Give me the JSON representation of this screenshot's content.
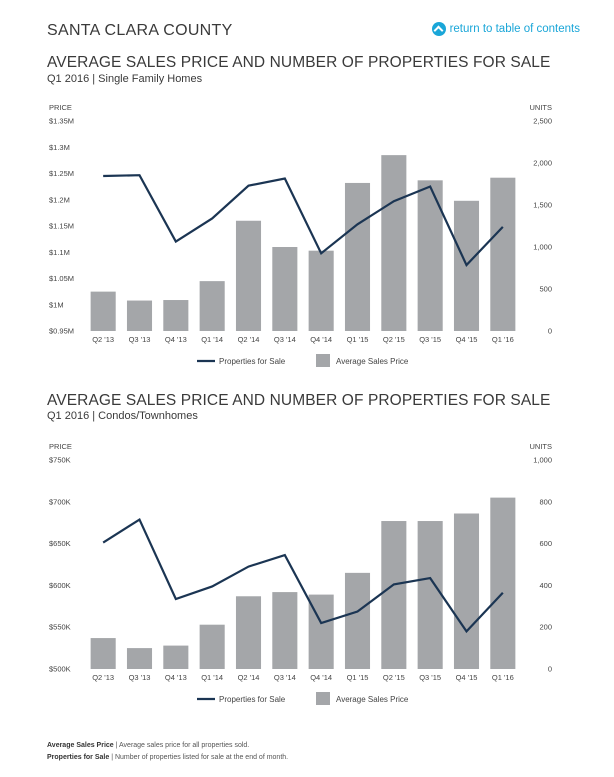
{
  "header": {
    "region": "SANTA CLARA COUNTY",
    "toc_link": "return to table of contents",
    "accent": "#1aa6d8"
  },
  "charts": [
    {
      "title": "AVERAGE SALES PRICE AND NUMBER OF PROPERTIES FOR SALE",
      "subtitle": "Q1 2016 | Single Family Homes"
    },
    {
      "title": "AVERAGE SALES PRICE AND NUMBER OF PROPERTIES FOR SALE",
      "subtitle": "Q1 2016 | Condos/Townhomes"
    }
  ],
  "chart_data": [
    {
      "type": "bar",
      "categories": [
        "Q2 '13",
        "Q3 '13",
        "Q4 '13",
        "Q1 '14",
        "Q2 '14",
        "Q3 '14",
        "Q4 '14",
        "Q1 '15",
        "Q2 '15",
        "Q3 '15",
        "Q4 '15",
        "Q1 '16"
      ],
      "ylabel": "PRICE",
      "y2label": "UNITS",
      "ylim": [
        0.95,
        1.35
      ],
      "y_ticks": [
        "$1.35M",
        "$1.3M",
        "$1.25M",
        "$1.2M",
        "$1.15M",
        "$1.1M",
        "$1.05M",
        "$1M",
        "$0.95M"
      ],
      "y_tick_values": [
        1.35,
        1.3,
        1.25,
        1.2,
        1.15,
        1.1,
        1.05,
        1.0,
        0.95
      ],
      "y2lim": [
        0,
        2500
      ],
      "y2_ticks": [
        "2,500",
        "2,000",
        "1,500",
        "1,000",
        "500",
        "0"
      ],
      "y2_tick_values": [
        2500,
        2000,
        1500,
        1000,
        500,
        0
      ],
      "series": [
        {
          "name": "Average Sales Price",
          "type": "bar",
          "axis": "left",
          "color": "#a4a6a9",
          "values": [
            1.025,
            1.008,
            1.009,
            1.045,
            1.16,
            1.11,
            1.103,
            1.232,
            1.285,
            1.237,
            1.198,
            1.242
          ]
        },
        {
          "name": "Properties for Sale",
          "type": "line",
          "axis": "right",
          "color": "#1b3553",
          "values": [
            1845,
            1855,
            1065,
            1340,
            1730,
            1815,
            925,
            1270,
            1545,
            1720,
            785,
            1240
          ]
        }
      ],
      "legend": {
        "line_label": "Properties for Sale",
        "bar_label": "Average Sales Price"
      }
    },
    {
      "type": "bar",
      "categories": [
        "Q2 '13",
        "Q3 '13",
        "Q4 '13",
        "Q1 '14",
        "Q2 '14",
        "Q3 '14",
        "Q4 '14",
        "Q1 '15",
        "Q2 '15",
        "Q3 '15",
        "Q4 '15",
        "Q1 '16"
      ],
      "ylabel": "PRICE",
      "y2label": "UNITS",
      "ylim": [
        500,
        750
      ],
      "y_ticks": [
        "$750K",
        "$700K",
        "$650K",
        "$600K",
        "$550K",
        "$500K"
      ],
      "y_tick_values": [
        750,
        700,
        650,
        600,
        550,
        500
      ],
      "y2lim": [
        0,
        1000
      ],
      "y2_ticks": [
        "1,000",
        "800",
        "600",
        "400",
        "200",
        "0"
      ],
      "y2_tick_values": [
        1000,
        800,
        600,
        400,
        200,
        0
      ],
      "series": [
        {
          "name": "Average Sales Price",
          "type": "bar",
          "axis": "left",
          "color": "#a4a6a9",
          "values": [
            537,
            525,
            528,
            553,
            587,
            592,
            589,
            615,
            677,
            677,
            686,
            705
          ]
        },
        {
          "name": "Properties for Sale",
          "type": "line",
          "axis": "right",
          "color": "#1b3553",
          "values": [
            605,
            715,
            335,
            395,
            490,
            545,
            220,
            275,
            405,
            435,
            180,
            365
          ]
        }
      ],
      "legend": {
        "line_label": "Properties for Sale",
        "bar_label": "Average Sales Price"
      }
    }
  ],
  "footnotes": [
    {
      "term": "Average Sales Price",
      "text": " | Average sales price for all properties sold."
    },
    {
      "term": "Properties for Sale",
      "text": " | Number of properties listed for sale at the end of month."
    }
  ]
}
